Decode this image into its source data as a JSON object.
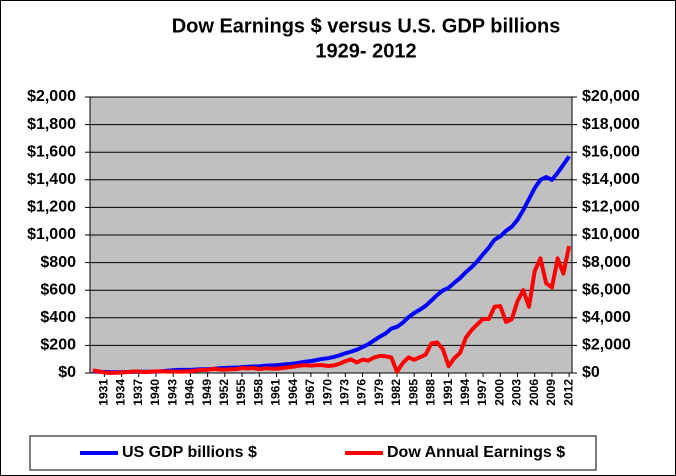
{
  "chart_data": {
    "type": "line",
    "title": "Dow Earnings $ versus U.S. GDP billions",
    "subtitle": "1929- 2012",
    "categories": [
      null,
      null,
      "1931",
      null,
      null,
      "1934",
      null,
      null,
      "1937",
      null,
      null,
      "1940",
      null,
      null,
      "1943",
      null,
      null,
      "1946",
      null,
      null,
      "1949",
      null,
      null,
      "1952",
      null,
      null,
      "1955",
      null,
      null,
      "1958",
      null,
      null,
      "1961",
      null,
      null,
      "1964",
      null,
      null,
      "1967",
      null,
      null,
      "1970",
      null,
      null,
      "1973",
      null,
      null,
      "1976",
      null,
      null,
      "1979",
      null,
      null,
      "1982",
      null,
      null,
      "1985",
      null,
      null,
      "1988",
      null,
      null,
      "1991",
      null,
      null,
      "1994",
      null,
      null,
      "1997",
      null,
      null,
      "2000",
      null,
      null,
      "2003",
      null,
      null,
      "2006",
      null,
      null,
      "2009",
      null,
      null,
      "2012"
    ],
    "series": [
      {
        "name": "US GDP billions $",
        "color": "#0000ff",
        "axis": "y2",
        "values": [
          104,
          92,
          77,
          60,
          57,
          67,
          74,
          85,
          93,
          87,
          93,
          103,
          129,
          166,
          203,
          225,
          229,
          228,
          250,
          275,
          272,
          300,
          347,
          367,
          389,
          391,
          425,
          449,
          474,
          482,
          522,
          543,
          563,
          605,
          639,
          685,
          743,
          815,
          862,
          943,
          1019,
          1075,
          1167,
          1282,
          1429,
          1549,
          1689,
          1878,
          2086,
          2357,
          2632,
          2862,
          3211,
          3345,
          3638,
          4041,
          4347,
          4590,
          4870,
          5253,
          5658,
          5980,
          6174,
          6539,
          6879,
          7309,
          7664,
          8100,
          8609,
          9089,
          9661,
          9900,
          10300,
          10600,
          11100,
          11800,
          12600,
          13400,
          14000,
          14200,
          14000,
          14500,
          15100,
          15700
        ]
      },
      {
        "name": "Dow Annual Earnings $",
        "color": "#ff0000",
        "axis": "y",
        "values": [
          19,
          11,
          4,
          1,
          2,
          4,
          6,
          11,
          11,
          6,
          9,
          12,
          12,
          10,
          10,
          10,
          10,
          13,
          18,
          23,
          23,
          30,
          26,
          24,
          27,
          28,
          36,
          33,
          36,
          28,
          34,
          32,
          31,
          36,
          41,
          46,
          53,
          57,
          53,
          57,
          57,
          51,
          55,
          67,
          86,
          99,
          76,
          97,
          90,
          112,
          124,
          121,
          113,
          9,
          72,
          113,
          96,
          115,
          133,
          215,
          221,
          172,
          50,
          108,
          146,
          256,
          311,
          353,
          392,
          390,
          480,
          485,
          370,
          390,
          520,
          600,
          480,
          740,
          830,
          650,
          620,
          830,
          720,
          920
        ]
      }
    ],
    "ylim": [
      0,
      2000
    ],
    "yticks": [
      {
        "value": 0,
        "label": "$0"
      },
      {
        "value": 200,
        "label": "$200"
      },
      {
        "value": 400,
        "label": "$400"
      },
      {
        "value": 600,
        "label": "$600"
      },
      {
        "value": 800,
        "label": "$800"
      },
      {
        "value": 1000,
        "label": "$1,000"
      },
      {
        "value": 1200,
        "label": "$1,200"
      },
      {
        "value": 1400,
        "label": "$1,400"
      },
      {
        "value": 1600,
        "label": "$1,600"
      },
      {
        "value": 1800,
        "label": "$1,800"
      },
      {
        "value": 2000,
        "label": "$2,000"
      }
    ],
    "y2lim": [
      0,
      20000
    ],
    "y2ticks": [
      {
        "value": 0,
        "label": "$0"
      },
      {
        "value": 2000,
        "label": "$2,000"
      },
      {
        "value": 4000,
        "label": "$4,000"
      },
      {
        "value": 6000,
        "label": "$6,000"
      },
      {
        "value": 8000,
        "label": "$8,000"
      },
      {
        "value": 10000,
        "label": "$10,000"
      },
      {
        "value": 12000,
        "label": "$12,000"
      },
      {
        "value": 14000,
        "label": "$14,000"
      },
      {
        "value": 16000,
        "label": "$16,000"
      },
      {
        "value": 18000,
        "label": "$18,000"
      },
      {
        "value": 20000,
        "label": "$20,000"
      }
    ],
    "grid": true
  }
}
